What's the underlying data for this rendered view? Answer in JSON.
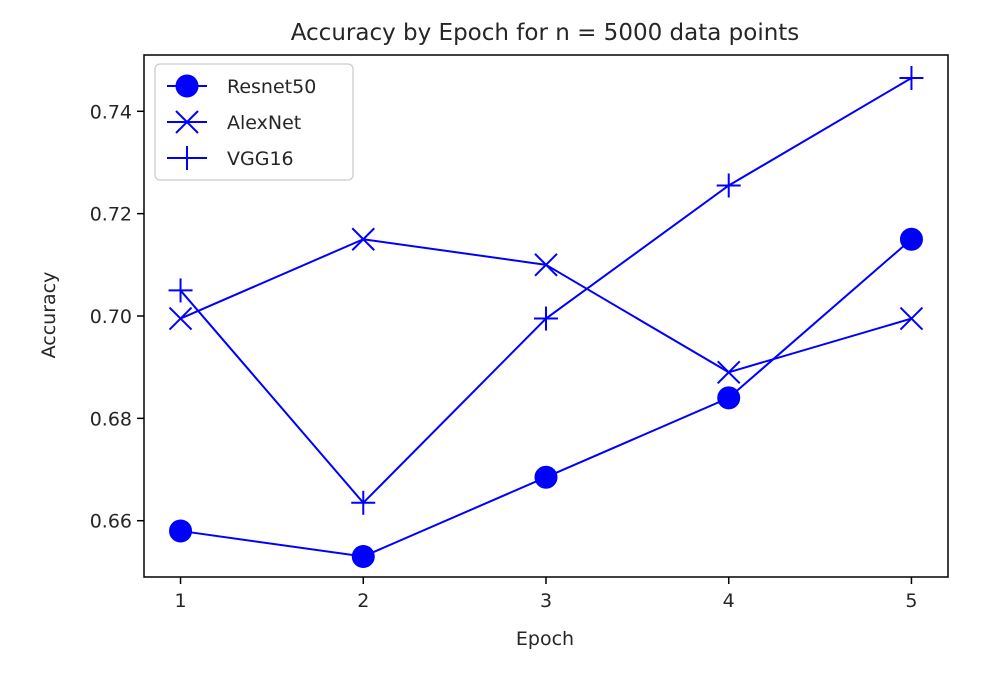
{
  "chart_data": {
    "type": "line",
    "title": "Accuracy by Epoch for n = 5000 data points",
    "xlabel": "Epoch",
    "ylabel": "Accuracy",
    "x": [
      1,
      2,
      3,
      4,
      5
    ],
    "xticks": [
      "1",
      "2",
      "3",
      "4",
      "5"
    ],
    "yticks": [
      0.66,
      0.68,
      0.7,
      0.72,
      0.74
    ],
    "ytick_labels": [
      "0.66",
      "0.68",
      "0.70",
      "0.72",
      "0.74"
    ],
    "xlim": [
      0.8,
      5.2
    ],
    "ylim": [
      0.649,
      0.751
    ],
    "grid": false,
    "legend_position": "top-left",
    "series": [
      {
        "name": "Resnet50",
        "marker": "circle",
        "color": "#0000ff",
        "values": [
          0.658,
          0.653,
          0.6685,
          0.684,
          0.715
        ]
      },
      {
        "name": "AlexNet",
        "marker": "x",
        "color": "#0000ff",
        "values": [
          0.6995,
          0.715,
          0.71,
          0.689,
          0.6995
        ]
      },
      {
        "name": "VGG16",
        "marker": "plus",
        "color": "#0000ff",
        "values": [
          0.705,
          0.6635,
          0.6995,
          0.7255,
          0.7465
        ]
      }
    ]
  }
}
